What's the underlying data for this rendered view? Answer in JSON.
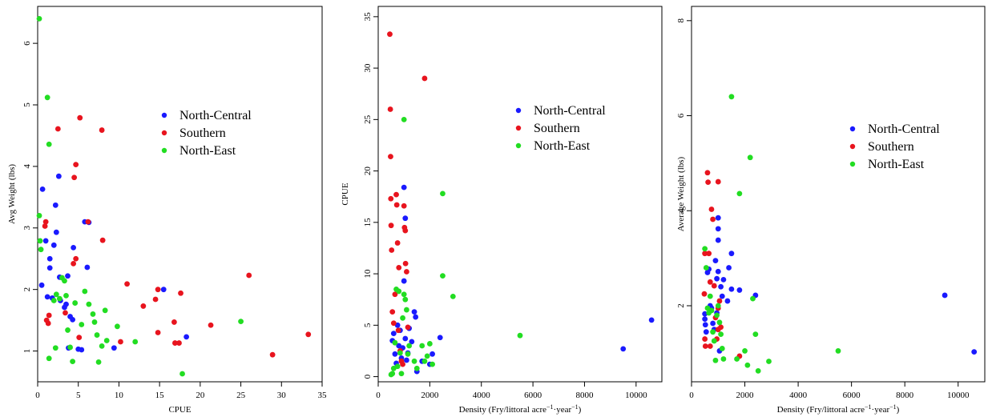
{
  "chart_data": [
    {
      "type": "scatter",
      "xlabel": "CPUE",
      "ylabel": "Avg Weight (lbs)",
      "xlim": [
        0,
        35
      ],
      "ylim": [
        0.5,
        6.6
      ],
      "xticks": [
        0,
        5,
        10,
        15,
        20,
        25,
        30,
        35
      ],
      "yticks": [
        1,
        2,
        3,
        4,
        5,
        6
      ],
      "legend_position": "top-right",
      "series": [
        {
          "name": "North-Central",
          "color": "#1a1aff",
          "points": [
            [
              0.5,
              2.07
            ],
            [
              0.6,
              3.63
            ],
            [
              1.0,
              2.79
            ],
            [
              1.2,
              1.88
            ],
            [
              1.5,
              2.35
            ],
            [
              1.5,
              2.5
            ],
            [
              1.8,
              1.86
            ],
            [
              2.0,
              2.72
            ],
            [
              2.2,
              3.37
            ],
            [
              2.3,
              2.93
            ],
            [
              2.6,
              3.84
            ],
            [
              2.7,
              2.2
            ],
            [
              2.8,
              1.82
            ],
            [
              3.3,
              1.71
            ],
            [
              3.5,
              1.76
            ],
            [
              3.7,
              2.22
            ],
            [
              3.8,
              1.05
            ],
            [
              4.0,
              1.56
            ],
            [
              4.3,
              1.51
            ],
            [
              4.4,
              2.68
            ],
            [
              5.0,
              1.03
            ],
            [
              5.4,
              1.02
            ],
            [
              5.8,
              3.1
            ],
            [
              6.1,
              2.36
            ],
            [
              6.3,
              3.09
            ],
            [
              9.4,
              1.05
            ],
            [
              15.5,
              2.0
            ],
            [
              18.3,
              1.23
            ]
          ]
        },
        {
          "name": "Southern",
          "color": "#e8141e",
          "points": [
            [
              0.9,
              3.03
            ],
            [
              1.0,
              3.1
            ],
            [
              1.1,
              1.5
            ],
            [
              1.3,
              1.45
            ],
            [
              1.4,
              1.58
            ],
            [
              2.5,
              4.61
            ],
            [
              3.4,
              1.62
            ],
            [
              4.4,
              2.42
            ],
            [
              4.5,
              3.82
            ],
            [
              4.7,
              2.5
            ],
            [
              4.7,
              4.03
            ],
            [
              5.1,
              1.22
            ],
            [
              5.2,
              4.79
            ],
            [
              6.2,
              3.1
            ],
            [
              7.9,
              4.59
            ],
            [
              8.0,
              2.8
            ],
            [
              10.2,
              1.15
            ],
            [
              11.0,
              2.09
            ],
            [
              13.0,
              1.73
            ],
            [
              14.5,
              1.84
            ],
            [
              14.8,
              2.0
            ],
            [
              14.8,
              1.3
            ],
            [
              16.8,
              1.47
            ],
            [
              16.9,
              1.13
            ],
            [
              17.4,
              1.13
            ],
            [
              17.6,
              1.94
            ],
            [
              21.3,
              1.42
            ],
            [
              26.0,
              2.23
            ],
            [
              28.9,
              0.94
            ],
            [
              33.3,
              1.27
            ]
          ]
        },
        {
          "name": "North-East",
          "color": "#22dd22",
          "points": [
            [
              0.2,
              6.4
            ],
            [
              0.2,
              3.2
            ],
            [
              0.3,
              2.79
            ],
            [
              0.4,
              2.65
            ],
            [
              1.2,
              5.12
            ],
            [
              1.4,
              0.88
            ],
            [
              1.4,
              4.36
            ],
            [
              2.0,
              1.82
            ],
            [
              2.2,
              1.05
            ],
            [
              2.3,
              1.92
            ],
            [
              2.7,
              1.85
            ],
            [
              3.0,
              2.19
            ],
            [
              3.3,
              2.14
            ],
            [
              3.5,
              1.9
            ],
            [
              3.7,
              1.34
            ],
            [
              4.0,
              1.06
            ],
            [
              4.3,
              0.83
            ],
            [
              4.6,
              1.78
            ],
            [
              5.4,
              1.43
            ],
            [
              5.8,
              1.97
            ],
            [
              6.3,
              1.76
            ],
            [
              6.8,
              1.6
            ],
            [
              7.0,
              1.47
            ],
            [
              7.3,
              1.26
            ],
            [
              7.5,
              0.82
            ],
            [
              7.9,
              1.08
            ],
            [
              8.3,
              1.66
            ],
            [
              8.5,
              1.17
            ],
            [
              9.8,
              1.4
            ],
            [
              12.0,
              1.15
            ],
            [
              17.8,
              0.63
            ],
            [
              25.0,
              1.48
            ]
          ]
        }
      ]
    },
    {
      "type": "scatter",
      "xlabel": "Density (Fry/littoral acre",
      "xlabel_sup1": "−1",
      "xlabel_mid": "·year",
      "xlabel_sup2": "−1",
      "xlabel_end": ")",
      "ylabel": "CPUE",
      "xlim": [
        0,
        11000
      ],
      "ylim": [
        -0.5,
        36
      ],
      "xticks": [
        0,
        2000,
        4000,
        6000,
        8000,
        10000
      ],
      "yticks": [
        0,
        5,
        10,
        15,
        20,
        25,
        30,
        35
      ],
      "legend_position": "top-right",
      "series": [
        {
          "name": "North-Central",
          "color": "#1a1aff",
          "points": [
            [
              550,
              3.5
            ],
            [
              600,
              4.2
            ],
            [
              650,
              2.2
            ],
            [
              700,
              1.3
            ],
            [
              750,
              5.0
            ],
            [
              800,
              3.0
            ],
            [
              850,
              4.5
            ],
            [
              900,
              1.8
            ],
            [
              950,
              2.8
            ],
            [
              1000,
              18.4
            ],
            [
              1000,
              9.3
            ],
            [
              1050,
              15.4
            ],
            [
              1050,
              3.7
            ],
            [
              1100,
              1.6
            ],
            [
              1150,
              2.3
            ],
            [
              1200,
              4.7
            ],
            [
              1300,
              3.4
            ],
            [
              1400,
              6.3
            ],
            [
              1450,
              5.8
            ],
            [
              1500,
              0.5
            ],
            [
              1700,
              1.5
            ],
            [
              2000,
              1.2
            ],
            [
              2100,
              2.2
            ],
            [
              2400,
              3.8
            ],
            [
              9500,
              2.7
            ],
            [
              10600,
              5.5
            ]
          ]
        },
        {
          "name": "Southern",
          "color": "#e8141e",
          "points": [
            [
              450,
              33.3
            ],
            [
              470,
              26.0
            ],
            [
              480,
              21.4
            ],
            [
              490,
              17.3
            ],
            [
              500,
              14.7
            ],
            [
              520,
              12.3
            ],
            [
              550,
              6.3
            ],
            [
              600,
              5.2
            ],
            [
              650,
              8.0
            ],
            [
              700,
              17.7
            ],
            [
              720,
              16.7
            ],
            [
              750,
              13.0
            ],
            [
              780,
              4.5
            ],
            [
              800,
              10.6
            ],
            [
              850,
              2.5
            ],
            [
              900,
              1.5
            ],
            [
              950,
              1.2
            ],
            [
              1000,
              16.6
            ],
            [
              1020,
              14.5
            ],
            [
              1050,
              14.2
            ],
            [
              1060,
              11.0
            ],
            [
              1100,
              10.2
            ],
            [
              1150,
              4.8
            ],
            [
              1800,
              29.0
            ]
          ]
        },
        {
          "name": "North-East",
          "color": "#22dd22",
          "points": [
            [
              500,
              0.2
            ],
            [
              550,
              0.3
            ],
            [
              600,
              0.8
            ],
            [
              650,
              3.3
            ],
            [
              700,
              8.5
            ],
            [
              750,
              1.0
            ],
            [
              800,
              8.3
            ],
            [
              850,
              2.3
            ],
            [
              900,
              0.3
            ],
            [
              950,
              5.7
            ],
            [
              1000,
              25.0
            ],
            [
              1000,
              8.0
            ],
            [
              1050,
              7.5
            ],
            [
              1100,
              6.5
            ],
            [
              1150,
              2.2
            ],
            [
              1200,
              3.0
            ],
            [
              1400,
              1.5
            ],
            [
              1500,
              0.8
            ],
            [
              1700,
              3.0
            ],
            [
              1800,
              1.5
            ],
            [
              1900,
              2.0
            ],
            [
              2000,
              3.2
            ],
            [
              2100,
              1.2
            ],
            [
              2500,
              17.8
            ],
            [
              2500,
              9.8
            ],
            [
              2900,
              7.8
            ],
            [
              5500,
              4.0
            ]
          ]
        }
      ]
    },
    {
      "type": "scatter",
      "xlabel": "Density (Fry/littoral acre",
      "xlabel_sup1": "−1",
      "xlabel_mid": "·year",
      "xlabel_sup2": "−1",
      "xlabel_end": ")",
      "ylabel": "Average Weight (lbs)",
      "xlim": [
        0,
        11000
      ],
      "ylim": [
        0.4,
        8.3
      ],
      "xticks": [
        0,
        2000,
        4000,
        6000,
        8000,
        10000
      ],
      "yticks": [
        2,
        4,
        6,
        8
      ],
      "legend_position": "top-right",
      "series": [
        {
          "name": "North-Central",
          "color": "#1a1aff",
          "points": [
            [
              500,
              1.83
            ],
            [
              500,
              1.72
            ],
            [
              520,
              1.6
            ],
            [
              550,
              1.45
            ],
            [
              600,
              2.7
            ],
            [
              650,
              2.77
            ],
            [
              700,
              2.0
            ],
            [
              750,
              1.95
            ],
            [
              800,
              1.63
            ],
            [
              850,
              1.5
            ],
            [
              900,
              2.95
            ],
            [
              950,
              2.57
            ],
            [
              950,
              1.85
            ],
            [
              1000,
              3.85
            ],
            [
              1000,
              3.62
            ],
            [
              1000,
              3.38
            ],
            [
              1000,
              2.72
            ],
            [
              1050,
              1.05
            ],
            [
              1100,
              2.4
            ],
            [
              1150,
              2.2
            ],
            [
              1200,
              2.55
            ],
            [
              1350,
              2.1
            ],
            [
              1400,
              2.8
            ],
            [
              1500,
              3.1
            ],
            [
              1500,
              2.35
            ],
            [
              1800,
              2.33
            ],
            [
              2400,
              2.22
            ],
            [
              9500,
              2.22
            ],
            [
              10600,
              1.03
            ]
          ]
        },
        {
          "name": "Southern",
          "color": "#e8141e",
          "points": [
            [
              480,
              2.25
            ],
            [
              500,
              3.1
            ],
            [
              500,
              1.3
            ],
            [
              520,
              1.15
            ],
            [
              600,
              4.8
            ],
            [
              620,
              4.6
            ],
            [
              650,
              3.1
            ],
            [
              700,
              2.5
            ],
            [
              700,
              1.15
            ],
            [
              750,
              4.03
            ],
            [
              800,
              3.82
            ],
            [
              850,
              2.42
            ],
            [
              900,
              1.75
            ],
            [
              950,
              1.3
            ],
            [
              1000,
              4.61
            ],
            [
              1000,
              1.95
            ],
            [
              1000,
              1.5
            ],
            [
              1050,
              2.1
            ],
            [
              1100,
              1.55
            ],
            [
              1800,
              0.94
            ]
          ]
        },
        {
          "name": "North-East",
          "color": "#22dd22",
          "points": [
            [
              500,
              3.2
            ],
            [
              550,
              2.8
            ],
            [
              600,
              1.95
            ],
            [
              650,
              1.85
            ],
            [
              700,
              2.2
            ],
            [
              750,
              1.9
            ],
            [
              800,
              1.45
            ],
            [
              850,
              1.26
            ],
            [
              900,
              0.85
            ],
            [
              950,
              1.8
            ],
            [
              1000,
              2.0
            ],
            [
              1050,
              1.65
            ],
            [
              1100,
              1.4
            ],
            [
              1150,
              1.1
            ],
            [
              1200,
              0.88
            ],
            [
              1500,
              6.4
            ],
            [
              1700,
              0.88
            ],
            [
              1800,
              4.36
            ],
            [
              2000,
              1.05
            ],
            [
              2100,
              0.75
            ],
            [
              2200,
              5.12
            ],
            [
              2300,
              2.15
            ],
            [
              2400,
              1.4
            ],
            [
              2500,
              0.63
            ],
            [
              2900,
              0.83
            ],
            [
              5500,
              1.05
            ]
          ]
        }
      ]
    }
  ]
}
